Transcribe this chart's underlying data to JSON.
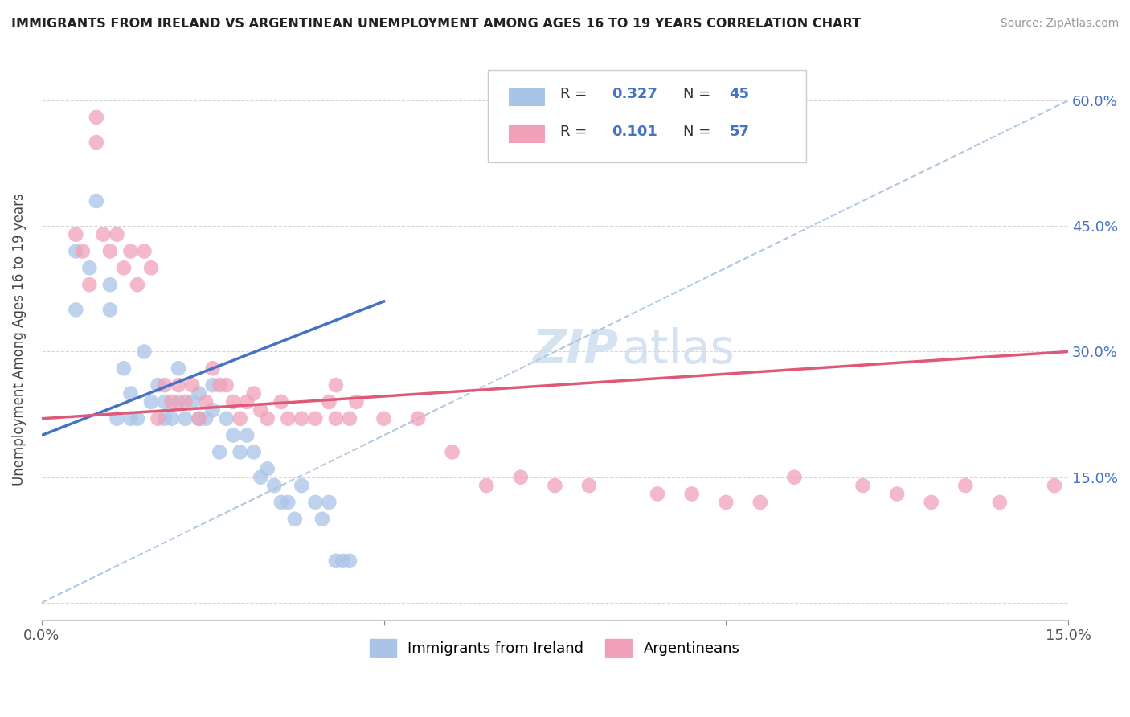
{
  "title": "IMMIGRANTS FROM IRELAND VS ARGENTINEAN UNEMPLOYMENT AMONG AGES 16 TO 19 YEARS CORRELATION CHART",
  "source": "Source: ZipAtlas.com",
  "ylabel": "Unemployment Among Ages 16 to 19 years",
  "xlim": [
    0.0,
    0.15
  ],
  "ylim": [
    -0.02,
    0.65
  ],
  "color_blue": "#aac4e8",
  "color_pink": "#f0a0b8",
  "line_blue": "#4472c4",
  "line_pink": "#e05878",
  "line_dashed": "#b0c8e0",
  "ireland_x": [
    0.005,
    0.005,
    0.007,
    0.008,
    0.01,
    0.01,
    0.011,
    0.012,
    0.013,
    0.013,
    0.014,
    0.015,
    0.016,
    0.017,
    0.018,
    0.018,
    0.019,
    0.02,
    0.02,
    0.021,
    0.022,
    0.023,
    0.023,
    0.024,
    0.025,
    0.025,
    0.026,
    0.027,
    0.028,
    0.029,
    0.03,
    0.031,
    0.032,
    0.033,
    0.034,
    0.035,
    0.036,
    0.037,
    0.038,
    0.04,
    0.041,
    0.042,
    0.043,
    0.044,
    0.045
  ],
  "ireland_y": [
    0.35,
    0.42,
    0.4,
    0.48,
    0.35,
    0.38,
    0.22,
    0.28,
    0.22,
    0.25,
    0.22,
    0.3,
    0.24,
    0.26,
    0.22,
    0.24,
    0.22,
    0.24,
    0.28,
    0.22,
    0.24,
    0.22,
    0.25,
    0.22,
    0.23,
    0.26,
    0.18,
    0.22,
    0.2,
    0.18,
    0.2,
    0.18,
    0.15,
    0.16,
    0.14,
    0.12,
    0.12,
    0.1,
    0.14,
    0.12,
    0.1,
    0.12,
    0.05,
    0.05,
    0.05
  ],
  "argentina_x": [
    0.005,
    0.006,
    0.007,
    0.008,
    0.008,
    0.009,
    0.01,
    0.011,
    0.012,
    0.013,
    0.014,
    0.015,
    0.016,
    0.017,
    0.018,
    0.019,
    0.02,
    0.021,
    0.022,
    0.023,
    0.024,
    0.025,
    0.026,
    0.027,
    0.028,
    0.029,
    0.03,
    0.031,
    0.032,
    0.033,
    0.035,
    0.036,
    0.038,
    0.04,
    0.042,
    0.043,
    0.043,
    0.045,
    0.046,
    0.05,
    0.055,
    0.06,
    0.065,
    0.07,
    0.075,
    0.08,
    0.09,
    0.095,
    0.1,
    0.105,
    0.11,
    0.12,
    0.125,
    0.13,
    0.135,
    0.14,
    0.148
  ],
  "argentina_y": [
    0.44,
    0.42,
    0.38,
    0.55,
    0.58,
    0.44,
    0.42,
    0.44,
    0.4,
    0.42,
    0.38,
    0.42,
    0.4,
    0.22,
    0.26,
    0.24,
    0.26,
    0.24,
    0.26,
    0.22,
    0.24,
    0.28,
    0.26,
    0.26,
    0.24,
    0.22,
    0.24,
    0.25,
    0.23,
    0.22,
    0.24,
    0.22,
    0.22,
    0.22,
    0.24,
    0.22,
    0.26,
    0.22,
    0.24,
    0.22,
    0.22,
    0.18,
    0.14,
    0.15,
    0.14,
    0.14,
    0.13,
    0.13,
    0.12,
    0.12,
    0.15,
    0.14,
    0.13,
    0.12,
    0.14,
    0.12,
    0.14
  ],
  "blue_line_x0": 0.0,
  "blue_line_y0": 0.2,
  "blue_line_x1": 0.05,
  "blue_line_y1": 0.36,
  "pink_line_x0": 0.0,
  "pink_line_y0": 0.22,
  "pink_line_x1": 0.15,
  "pink_line_y1": 0.3
}
